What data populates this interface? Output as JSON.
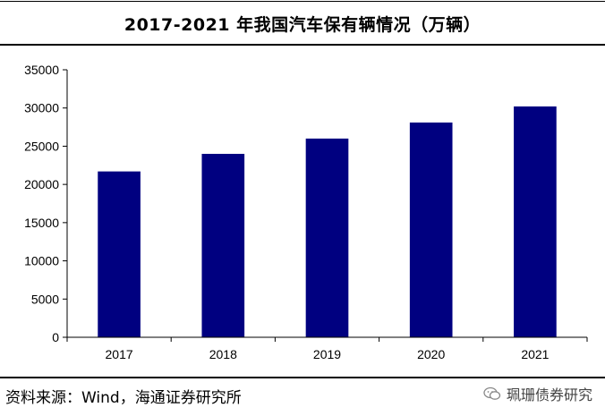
{
  "header": {
    "title": "2017-2021 年我国汽车保有辆情况（万辆）"
  },
  "chart_data": {
    "type": "bar",
    "title": "2017-2021 年我国汽车保有辆情况（万辆）",
    "categories": [
      "2017",
      "2018",
      "2019",
      "2020",
      "2021"
    ],
    "values": [
      21700,
      24000,
      26000,
      28100,
      30200
    ],
    "ylim": [
      0,
      35000
    ],
    "yticks": [
      0,
      5000,
      10000,
      15000,
      20000,
      25000,
      30000,
      35000
    ],
    "grid": false,
    "bar_color": "#000080"
  },
  "footer": {
    "source": "资料来源：Wind，海通证券研究所",
    "watermark": "珮珊债券研究"
  }
}
